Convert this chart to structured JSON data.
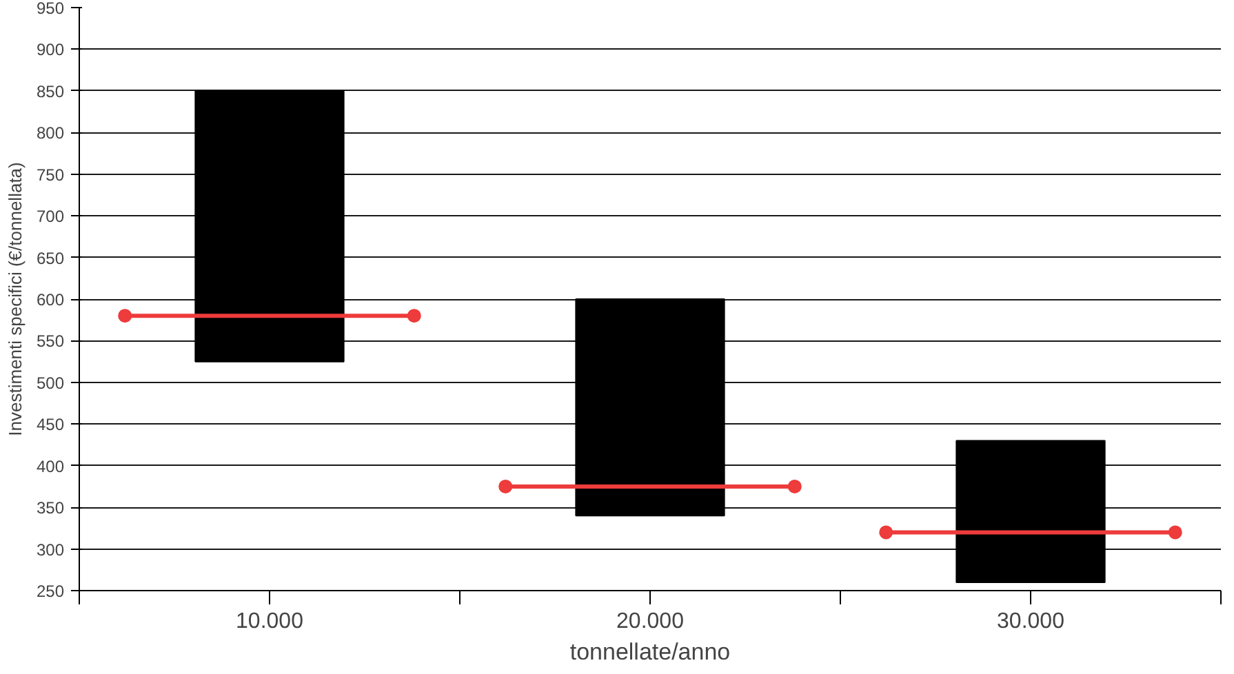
{
  "chart_data": {
    "type": "bar",
    "xlabel": "tonnellate/anno",
    "ylabel": "Investimenti specifici (€/tonnellata)",
    "xlim": [
      5000,
      35000
    ],
    "xticks": [
      {
        "value": 5000,
        "label": null
      },
      {
        "value": 10000,
        "label": "10.000"
      },
      {
        "value": 15000,
        "label": null
      },
      {
        "value": 20000,
        "label": "20.000"
      },
      {
        "value": 25000,
        "label": null
      },
      {
        "value": 30000,
        "label": "30.000"
      },
      {
        "value": 35000,
        "label": null
      }
    ],
    "ylim": [
      250,
      950
    ],
    "yticks": [
      250,
      300,
      350,
      400,
      450,
      500,
      550,
      600,
      650,
      700,
      750,
      800,
      850,
      900,
      950
    ],
    "grid": "y",
    "series": [
      {
        "color": "#000000",
        "x": [
          10000,
          20000,
          30000
        ],
        "base": [
          525,
          340,
          260
        ],
        "values": [
          325,
          260,
          170
        ]
      },
      {
        "type": "line",
        "color": "#ee3b3b",
        "marker": "circle",
        "line_style": "solid",
        "x": [
          6200,
          13800,
          15000,
          16200,
          23800,
          25000,
          26200,
          33800
        ],
        "values": [
          580,
          580,
          null,
          375,
          375,
          null,
          320,
          320
        ]
      }
    ]
  }
}
